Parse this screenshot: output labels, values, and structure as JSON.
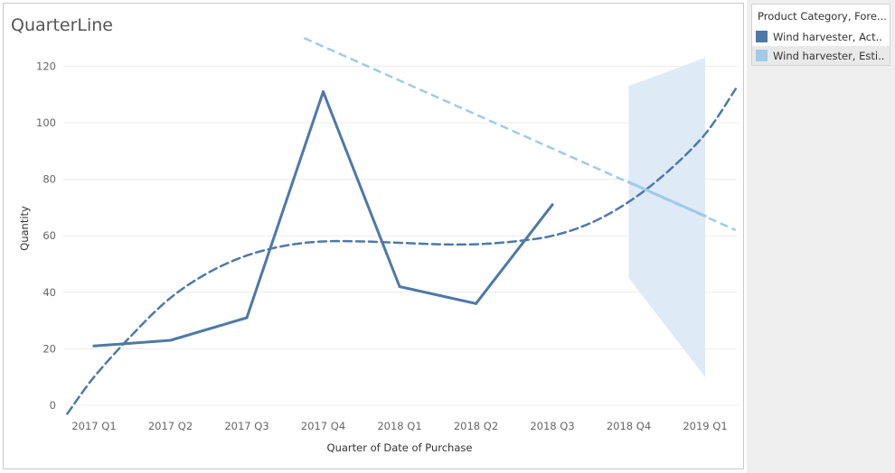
{
  "chart_data": {
    "type": "line",
    "title": "QuarterLine",
    "xlabel": "Quarter of Date of Purchase",
    "ylabel": "Quantity",
    "categories": [
      "2017 Q1",
      "2017 Q2",
      "2017 Q3",
      "2017 Q4",
      "2018 Q1",
      "2018 Q2",
      "2018 Q3",
      "2018 Q4",
      "2019 Q1"
    ],
    "ylim": [
      -2,
      130
    ],
    "yticks": [
      0,
      20,
      40,
      60,
      80,
      100,
      120
    ],
    "grid": true,
    "legend_position": "top-right",
    "series": [
      {
        "name": "Wind harvester, Act..",
        "color": "#4e79a7",
        "style": "solid",
        "values": [
          21,
          23,
          31,
          111,
          42,
          36,
          71,
          null,
          null
        ]
      },
      {
        "name": "Wind harvester, Esti..",
        "color": "#a0cbe8",
        "style": "solid",
        "values": [
          null,
          null,
          null,
          null,
          null,
          null,
          null,
          79,
          67
        ]
      }
    ],
    "actual_trend": {
      "color": "#4e79a7",
      "style": "dashed",
      "points": [
        [
          -0.35,
          -3
        ],
        [
          0,
          10
        ],
        [
          0.5,
          25
        ],
        [
          1,
          38
        ],
        [
          1.5,
          47
        ],
        [
          2,
          53
        ],
        [
          2.5,
          56.5
        ],
        [
          3,
          58
        ],
        [
          3.5,
          58
        ],
        [
          4,
          57.5
        ],
        [
          4.5,
          57
        ],
        [
          5,
          57
        ],
        [
          5.5,
          58
        ],
        [
          6,
          60
        ],
        [
          6.5,
          64.5
        ],
        [
          7,
          72
        ],
        [
          7.5,
          82.5
        ],
        [
          8,
          96
        ],
        [
          8.4,
          112
        ]
      ]
    },
    "estimate_trend": {
      "color": "#a0cbe8",
      "style": "dashed",
      "points": [
        [
          2.75,
          130
        ],
        [
          8.4,
          62
        ]
      ]
    },
    "estimate_band": {
      "color": "#dfeaf7",
      "upper": [
        [
          7,
          113
        ],
        [
          8,
          123
        ]
      ],
      "lower": [
        [
          7,
          45
        ],
        [
          8,
          10
        ]
      ]
    }
  },
  "legend": {
    "title": "Product Category, Fore...",
    "items": [
      {
        "label": "Wind harvester, Act..",
        "color": "#4e79a7"
      },
      {
        "label": "Wind harvester, Esti..",
        "color": "#a0cbe8"
      }
    ]
  }
}
